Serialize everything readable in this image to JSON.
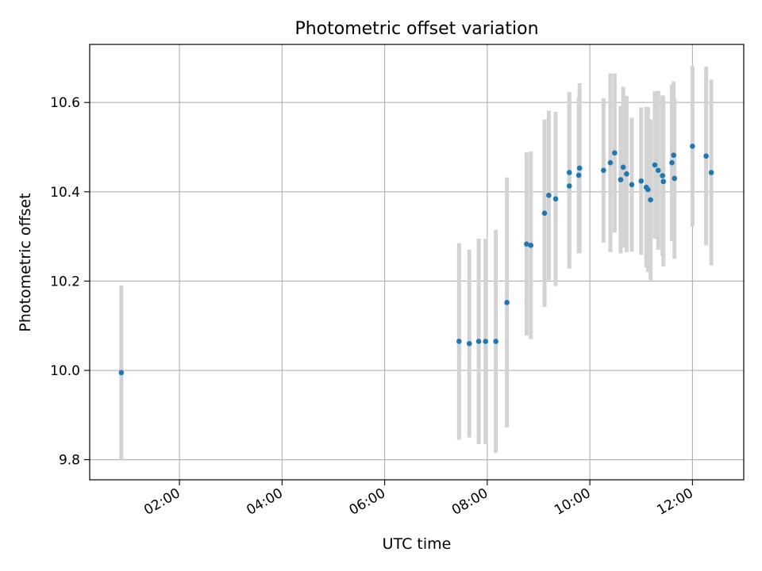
{
  "chart_data": {
    "type": "scatter",
    "title": "Photometric offset variation",
    "xlabel": "UTC time",
    "ylabel": "Photometric offset",
    "x_unit": "hours UTC",
    "xlim": [
      "00:15",
      "13:00"
    ],
    "ylim": [
      9.755,
      10.73
    ],
    "x_ticks": [
      "02:00",
      "04:00",
      "06:00",
      "08:00",
      "10:00",
      "12:00"
    ],
    "y_ticks": [
      9.8,
      10.0,
      10.2,
      10.4,
      10.6
    ],
    "y_tick_labels": [
      "9.8",
      "10.0",
      "10.2",
      "10.4",
      "10.6"
    ],
    "grid": true,
    "marker_color": "#1f77b4",
    "errorbar_color": "#d3d3d3",
    "points": [
      {
        "t": "00:52",
        "y": 9.995,
        "err": 0.195
      },
      {
        "t": "07:27",
        "y": 10.065,
        "err": 0.22
      },
      {
        "t": "07:39",
        "y": 10.06,
        "err": 0.21
      },
      {
        "t": "07:50",
        "y": 10.065,
        "err": 0.23
      },
      {
        "t": "07:58",
        "y": 10.065,
        "err": 0.23
      },
      {
        "t": "08:10",
        "y": 10.065,
        "err": 0.25
      },
      {
        "t": "08:23",
        "y": 10.152,
        "err": 0.28
      },
      {
        "t": "08:46",
        "y": 10.283,
        "err": 0.205
      },
      {
        "t": "08:51",
        "y": 10.28,
        "err": 0.21
      },
      {
        "t": "09:07",
        "y": 10.352,
        "err": 0.21
      },
      {
        "t": "09:12",
        "y": 10.392,
        "err": 0.19
      },
      {
        "t": "09:20",
        "y": 10.384,
        "err": 0.195
      },
      {
        "t": "09:36",
        "y": 10.413,
        "err": 0.185
      },
      {
        "t": "09:36",
        "y": 10.443,
        "err": 0.18
      },
      {
        "t": "09:47",
        "y": 10.437,
        "err": 0.175
      },
      {
        "t": "09:48",
        "y": 10.453,
        "err": 0.19
      },
      {
        "t": "10:16",
        "y": 10.448,
        "err": 0.162
      },
      {
        "t": "10:24",
        "y": 10.465,
        "err": 0.2
      },
      {
        "t": "10:29",
        "y": 10.487,
        "err": 0.178
      },
      {
        "t": "10:36",
        "y": 10.427,
        "err": 0.165
      },
      {
        "t": "10:39",
        "y": 10.455,
        "err": 0.18
      },
      {
        "t": "10:43",
        "y": 10.44,
        "err": 0.175
      },
      {
        "t": "10:49",
        "y": 10.416,
        "err": 0.15
      },
      {
        "t": "11:00",
        "y": 10.424,
        "err": 0.165
      },
      {
        "t": "11:06",
        "y": 10.41,
        "err": 0.18
      },
      {
        "t": "11:08",
        "y": 10.405,
        "err": 0.185
      },
      {
        "t": "11:11",
        "y": 10.382,
        "err": 0.18
      },
      {
        "t": "11:16",
        "y": 10.46,
        "err": 0.165
      },
      {
        "t": "11:20",
        "y": 10.448,
        "err": 0.178
      },
      {
        "t": "11:25",
        "y": 10.436,
        "err": 0.18
      },
      {
        "t": "11:26",
        "y": 10.423,
        "err": 0.19
      },
      {
        "t": "11:36",
        "y": 10.465,
        "err": 0.175
      },
      {
        "t": "11:38",
        "y": 10.482,
        "err": 0.165
      },
      {
        "t": "11:39",
        "y": 10.43,
        "err": 0.18
      },
      {
        "t": "12:00",
        "y": 10.502,
        "err": 0.18
      },
      {
        "t": "12:16",
        "y": 10.48,
        "err": 0.2
      },
      {
        "t": "12:22",
        "y": 10.443,
        "err": 0.208
      }
    ]
  }
}
